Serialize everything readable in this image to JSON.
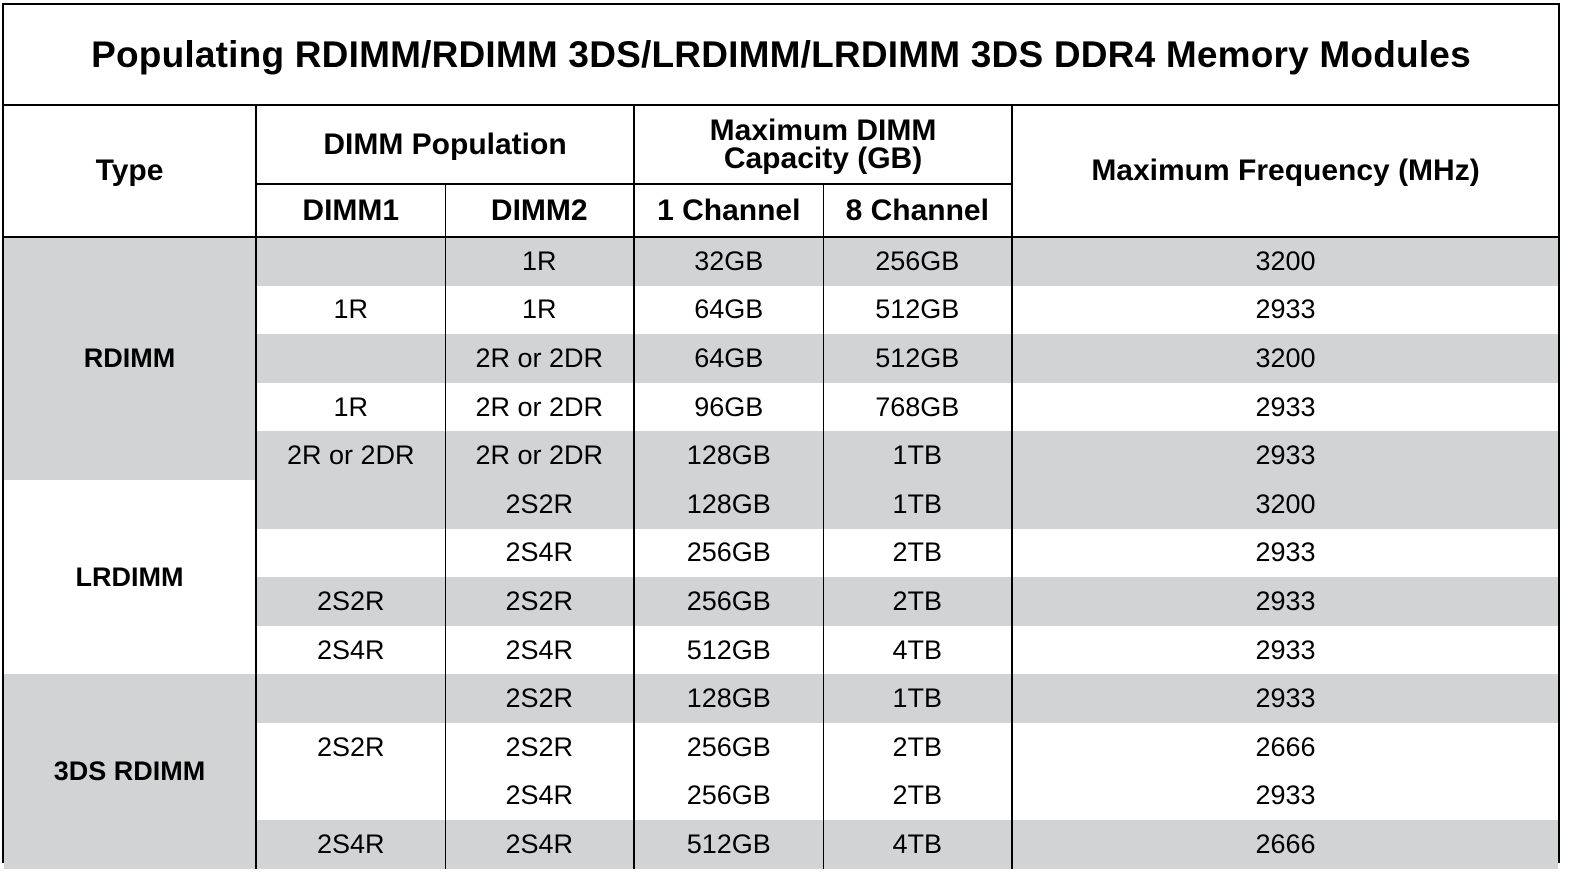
{
  "title": "Populating RDIMM/RDIMM 3DS/LRDIMM/LRDIMM 3DS DDR4 Memory Modules",
  "headers": {
    "type": "Type",
    "dimm_population": "DIMM Population",
    "dimm1": "DIMM1",
    "dimm2": "DIMM2",
    "max_capacity_line1": "Maximum DIMM",
    "max_capacity_line2": "Capacity (GB)",
    "ch1": "1 Channel",
    "ch8": "8 Channel",
    "max_freq": "Maximum Frequency (MHz)"
  },
  "groups": [
    {
      "label": "RDIMM"
    },
    {
      "label": "LRDIMM"
    },
    {
      "label": "3DS RDIMM"
    }
  ],
  "rows": [
    {
      "dimm1": "",
      "dimm2": "1R",
      "ch1": "32GB",
      "ch8": "256GB",
      "freq": "3200"
    },
    {
      "dimm1": "1R",
      "dimm2": "1R",
      "ch1": "64GB",
      "ch8": "512GB",
      "freq": "2933"
    },
    {
      "dimm1": "",
      "dimm2": "2R or 2DR",
      "ch1": "64GB",
      "ch8": "512GB",
      "freq": "3200"
    },
    {
      "dimm1": "1R",
      "dimm2": "2R or 2DR",
      "ch1": "96GB",
      "ch8": "768GB",
      "freq": "2933"
    },
    {
      "dimm1": "2R or 2DR",
      "dimm2": "2R or 2DR",
      "ch1": "128GB",
      "ch8": "1TB",
      "freq": "2933"
    },
    {
      "dimm1": "",
      "dimm2": "2S2R",
      "ch1": "128GB",
      "ch8": "1TB",
      "freq": "3200"
    },
    {
      "dimm1": "",
      "dimm2": "2S4R",
      "ch1": "256GB",
      "ch8": "2TB",
      "freq": "2933"
    },
    {
      "dimm1": "2S2R",
      "dimm2": "2S2R",
      "ch1": "256GB",
      "ch8": "2TB",
      "freq": "2933"
    },
    {
      "dimm1": "2S4R",
      "dimm2": "2S4R",
      "ch1": "512GB",
      "ch8": "4TB",
      "freq": "2933"
    },
    {
      "dimm1": "",
      "dimm2": "2S2R",
      "ch1": "128GB",
      "ch8": "1TB",
      "freq": "2933"
    },
    {
      "dimm1": "2S2R",
      "dimm2": "2S2R",
      "ch1": "256GB",
      "ch8": "2TB",
      "freq": "2666"
    },
    {
      "dimm1": "",
      "dimm2": "2S4R",
      "ch1": "256GB",
      "ch8": "2TB",
      "freq": "2933"
    },
    {
      "dimm1": "2S4R",
      "dimm2": "2S4R",
      "ch1": "512GB",
      "ch8": "4TB",
      "freq": "2666"
    }
  ]
}
